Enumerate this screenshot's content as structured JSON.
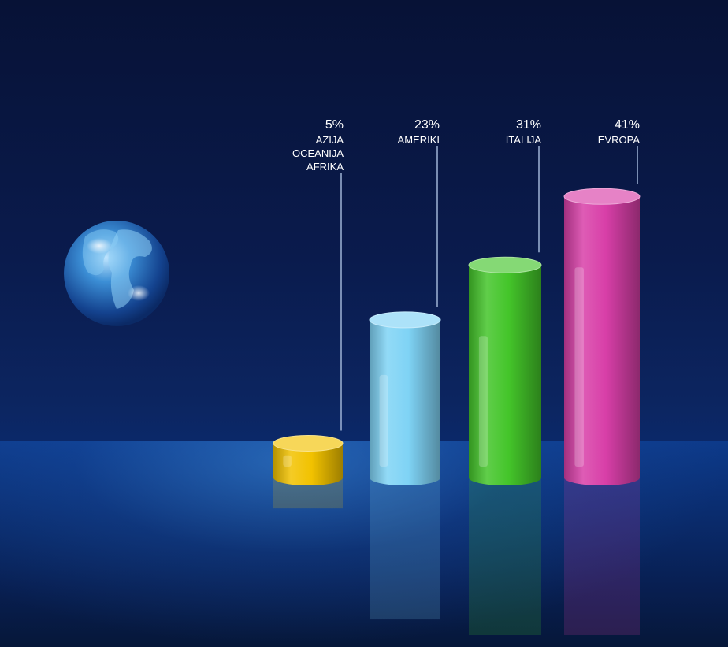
{
  "chart_data": {
    "type": "bar",
    "categories": [
      "AZIJA\nOCEANIJA\nAFRIKA",
      "AMERIKI",
      "ITALIJA",
      "EVROPA"
    ],
    "category_lines": [
      [
        "AZIJA",
        "OCEANIJA",
        "AFRIKA"
      ],
      [
        "AMERIKI"
      ],
      [
        "ITALIJA"
      ],
      [
        "EVROPA"
      ]
    ],
    "values": [
      5,
      23,
      31,
      41
    ],
    "value_labels": [
      "5%",
      "23%",
      "31%",
      "41%"
    ],
    "unit": "%",
    "colors": [
      "#f2c200",
      "#7fd3f5",
      "#44c52a",
      "#d83fa8"
    ],
    "style": "3d-cylinders",
    "legend": "none",
    "grid": false
  }
}
